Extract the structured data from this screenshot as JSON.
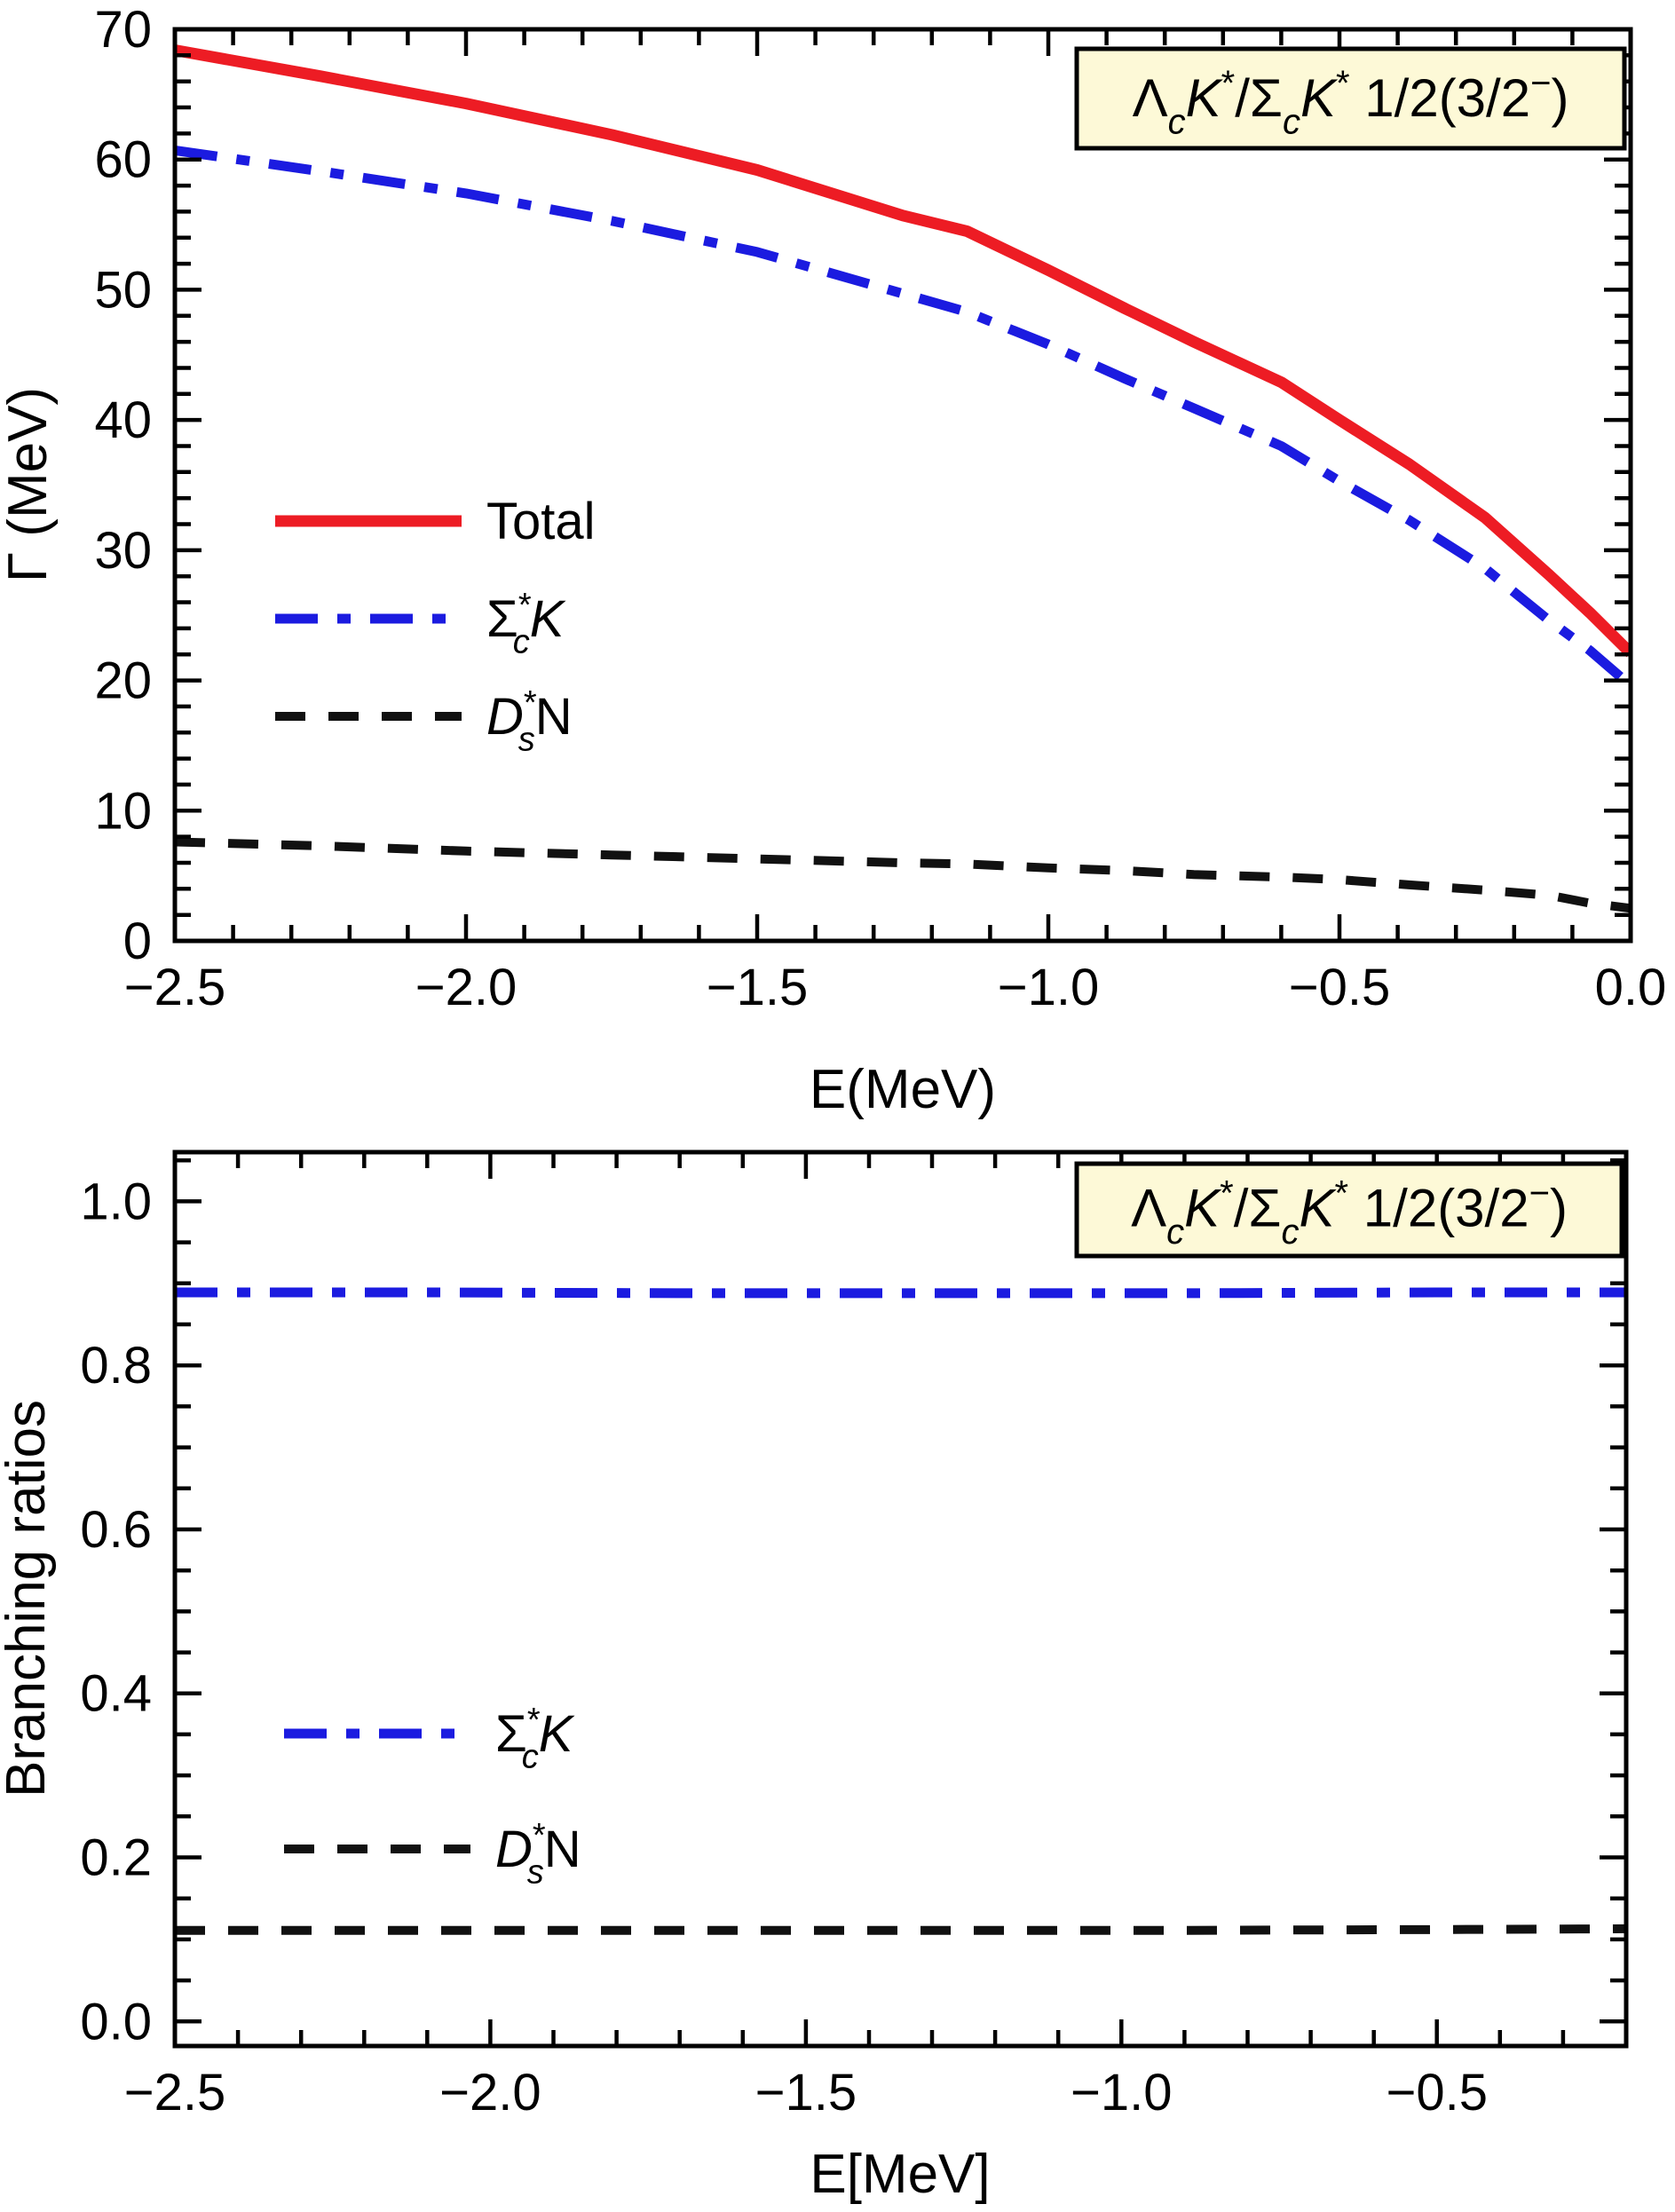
{
  "page": {
    "background": "#ffffff",
    "text_color": "#000000",
    "title_box_fill": "#fdf9d7",
    "title_box_border": "#000000"
  },
  "chart_data": [
    {
      "type": "line",
      "title": "ΛcK*/ΣcK* 1/2(3/2−)",
      "title_tokens": [
        {
          "t": "Λ"
        },
        {
          "t": "c",
          "sub": true,
          "i": true
        },
        {
          "t": "K",
          "i": true
        },
        {
          "t": "*",
          "sup": true
        },
        {
          "t": "/"
        },
        {
          "t": "Σ"
        },
        {
          "t": "c",
          "sub": true,
          "i": true
        },
        {
          "t": "K",
          "i": true
        },
        {
          "t": "*",
          "sup": true
        },
        {
          "t": " 1/2(3/2"
        },
        {
          "t": "−",
          "sup": true
        },
        {
          "t": ")"
        }
      ],
      "xlabel": "E(MeV)",
      "ylabel": "Γ (MeV)",
      "xlim": [
        -2.5,
        0.0
      ],
      "ylim": [
        0,
        70
      ],
      "xticks": {
        "values": [
          -2.5,
          -2.0,
          -1.5,
          -1.0,
          -0.5,
          0.0
        ],
        "labels": [
          "−2.5",
          "−2.0",
          "−1.5",
          "−1.0",
          "−0.5",
          "0.0"
        ],
        "minor_step": 0.1
      },
      "yticks": {
        "values": [
          0,
          10,
          20,
          30,
          40,
          50,
          60,
          70
        ],
        "labels": [
          "0",
          "10",
          "20",
          "30",
          "40",
          "50",
          "60",
          "70"
        ],
        "minor_step": 2
      },
      "grid": false,
      "legend_position": "inside-left-middle",
      "x": [
        -2.5,
        -2.25,
        -2.0,
        -1.75,
        -1.5,
        -1.25,
        -1.14,
        -1.0,
        -0.87,
        -0.75,
        -0.6,
        -0.5,
        -0.38,
        -0.25,
        -0.14,
        -0.07,
        0.0
      ],
      "series": [
        {
          "name": "Total",
          "label_tokens": [
            {
              "t": "Total"
            }
          ],
          "color": "#ed1c24",
          "style": "solid",
          "width": 13,
          "values": [
            68.4,
            66.4,
            64.3,
            61.9,
            59.2,
            55.7,
            54.5,
            51.5,
            48.6,
            46.0,
            42.9,
            40.0,
            36.6,
            32.5,
            28.1,
            25.2,
            22.1
          ]
        },
        {
          "name": "Σc*K",
          "label_tokens": [
            {
              "t": "Σ"
            },
            {
              "t": "*",
              "sup": true
            },
            {
              "t": "c",
              "sub": true,
              "stack": true,
              "i": true
            },
            {
              "t": "K",
              "i": true
            }
          ],
          "color": "#1b1be0",
          "style": "dashdot",
          "width": 11,
          "values": [
            60.7,
            59.1,
            57.4,
            55.3,
            52.9,
            49.7,
            48.3,
            45.8,
            43.2,
            40.9,
            38.0,
            35.3,
            32.3,
            28.6,
            24.6,
            22.3,
            19.6
          ]
        },
        {
          "name": "Ds*N",
          "label_tokens": [
            {
              "t": "D",
              "i": true
            },
            {
              "t": "*",
              "sup": true
            },
            {
              "t": "s",
              "sub": true,
              "stack": true,
              "i": true
            },
            {
              "t": "N"
            }
          ],
          "color": "#111111",
          "style": "dashed",
          "width": 10,
          "values": [
            7.6,
            7.3,
            6.9,
            6.6,
            6.3,
            6.0,
            5.9,
            5.6,
            5.4,
            5.1,
            4.9,
            4.7,
            4.3,
            3.9,
            3.5,
            2.9,
            2.5
          ]
        }
      ]
    },
    {
      "type": "line",
      "title": "ΛcK*/ΣcK* 1/2(3/2−)",
      "title_tokens": [
        {
          "t": "Λ"
        },
        {
          "t": "c",
          "sub": true,
          "i": true
        },
        {
          "t": "K",
          "i": true
        },
        {
          "t": "*",
          "sup": true
        },
        {
          "t": "/"
        },
        {
          "t": "Σ"
        },
        {
          "t": "c",
          "sub": true,
          "i": true
        },
        {
          "t": "K",
          "i": true
        },
        {
          "t": "*",
          "sup": true
        },
        {
          "t": " 1/2(3/2"
        },
        {
          "t": "−",
          "sup": true
        },
        {
          "t": ")"
        }
      ],
      "xlabel": "E[MeV]",
      "ylabel": "Branching ratios",
      "xlim": [
        -2.5,
        -0.2
      ],
      "ylim": [
        -0.03,
        1.06
      ],
      "xticks": {
        "values": [
          -2.5,
          -2.0,
          -1.5,
          -1.0,
          -0.5
        ],
        "labels": [
          "−2.5",
          "−2.0",
          "−1.5",
          "−1.0",
          "−0.5"
        ],
        "minor_step": 0.1
      },
      "yticks": {
        "values": [
          0.0,
          0.2,
          0.4,
          0.6,
          0.8,
          1.0
        ],
        "labels": [
          "0.0",
          "0.2",
          "0.4",
          "0.6",
          "0.8",
          "1.0"
        ],
        "minor_step": 0.05
      },
      "grid": false,
      "legend_position": "inside-left-middle",
      "x": [
        -2.5,
        -2.1,
        -1.7,
        -1.3,
        -0.9,
        -0.5,
        -0.2
      ],
      "series": [
        {
          "name": "Σc*K",
          "label_tokens": [
            {
              "t": "Σ"
            },
            {
              "t": "*",
              "sup": true
            },
            {
              "t": "c",
              "sub": true,
              "stack": true,
              "i": true
            },
            {
              "t": "K",
              "i": true
            }
          ],
          "color": "#1b1be0",
          "style": "dashdot",
          "width": 11,
          "values": [
            0.889,
            0.889,
            0.888,
            0.888,
            0.888,
            0.889,
            0.889
          ]
        },
        {
          "name": "Ds*N",
          "label_tokens": [
            {
              "t": "D",
              "i": true
            },
            {
              "t": "*",
              "sup": true
            },
            {
              "t": "s",
              "sub": true,
              "stack": true,
              "i": true
            },
            {
              "t": "N"
            }
          ],
          "color": "#111111",
          "style": "dashed",
          "width": 10,
          "values": [
            0.111,
            0.111,
            0.111,
            0.111,
            0.111,
            0.112,
            0.113
          ]
        }
      ]
    }
  ]
}
